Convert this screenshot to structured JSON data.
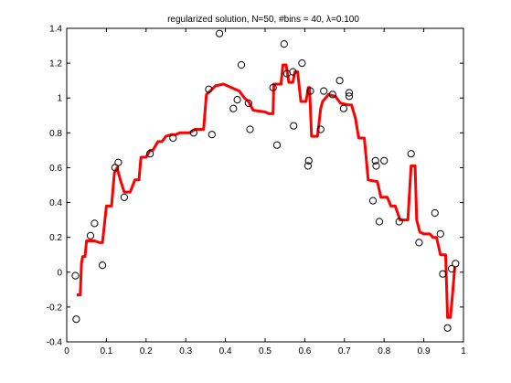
{
  "chart_data": {
    "type": "line",
    "title": "regularized solution, N=50, #bins = 40,    λ=0.100",
    "xlabel": "",
    "ylabel": "",
    "xlim": [
      0,
      1
    ],
    "ylim": [
      -0.4,
      1.4
    ],
    "xticks": [
      0,
      0.1,
      0.2,
      0.3,
      0.4,
      0.5,
      0.6,
      0.7,
      0.8,
      0.9,
      1
    ],
    "xtick_labels": [
      "0",
      "0.1",
      "0.2",
      "0.3",
      "0.4",
      "0.5",
      "0.6",
      "0.7",
      "0.8",
      "0.9",
      "1"
    ],
    "yticks": [
      -0.4,
      -0.2,
      0,
      0.2,
      0.4,
      0.6,
      0.8,
      1,
      1.2,
      1.4
    ],
    "ytick_labels": [
      "-0.4",
      "-0.2",
      "0",
      "0.2",
      "0.4",
      "0.6",
      "0.8",
      "1",
      "1.2",
      "1.4"
    ],
    "grid": false,
    "legend": "none",
    "colors": {
      "solution": "#ff0000",
      "observations": "#000000",
      "axes": "#000000"
    },
    "series": [
      {
        "style": "line",
        "values_xy": [
          [
            0.025,
            -0.13
          ],
          [
            0.034,
            -0.13
          ],
          [
            0.037,
            0.05
          ],
          [
            0.04,
            0.09
          ],
          [
            0.046,
            0.09
          ],
          [
            0.05,
            0.18
          ],
          [
            0.07,
            0.18
          ],
          [
            0.083,
            0.17
          ],
          [
            0.09,
            0.17
          ],
          [
            0.1,
            0.38
          ],
          [
            0.113,
            0.38
          ],
          [
            0.12,
            0.57
          ],
          [
            0.127,
            0.6
          ],
          [
            0.135,
            0.53
          ],
          [
            0.145,
            0.46
          ],
          [
            0.16,
            0.46
          ],
          [
            0.172,
            0.53
          ],
          [
            0.182,
            0.53
          ],
          [
            0.187,
            0.66
          ],
          [
            0.2,
            0.66
          ],
          [
            0.21,
            0.7
          ],
          [
            0.217,
            0.7
          ],
          [
            0.23,
            0.75
          ],
          [
            0.24,
            0.75
          ],
          [
            0.25,
            0.78
          ],
          [
            0.265,
            0.79
          ],
          [
            0.275,
            0.79
          ],
          [
            0.285,
            0.8
          ],
          [
            0.31,
            0.8
          ],
          [
            0.323,
            0.82
          ],
          [
            0.345,
            0.82
          ],
          [
            0.352,
            1.02
          ],
          [
            0.375,
            1.07
          ],
          [
            0.395,
            1.08
          ],
          [
            0.415,
            1.06
          ],
          [
            0.435,
            1.04
          ],
          [
            0.448,
            1.0
          ],
          [
            0.458,
            0.98
          ],
          [
            0.47,
            0.93
          ],
          [
            0.5,
            0.92
          ],
          [
            0.51,
            0.91
          ],
          [
            0.52,
            0.91
          ],
          [
            0.522,
            1.08
          ],
          [
            0.54,
            1.08
          ],
          [
            0.545,
            1.19
          ],
          [
            0.553,
            1.19
          ],
          [
            0.56,
            1.09
          ],
          [
            0.57,
            1.09
          ],
          [
            0.575,
            1.15
          ],
          [
            0.582,
            1.15
          ],
          [
            0.59,
            0.98
          ],
          [
            0.603,
            0.98
          ],
          [
            0.609,
            1.06
          ],
          [
            0.612,
            1.06
          ],
          [
            0.617,
            0.78
          ],
          [
            0.632,
            0.78
          ],
          [
            0.64,
            0.94
          ],
          [
            0.645,
            0.98
          ],
          [
            0.66,
            1.02
          ],
          [
            0.677,
            1.01
          ],
          [
            0.69,
            0.97
          ],
          [
            0.71,
            0.96
          ],
          [
            0.718,
            0.96
          ],
          [
            0.728,
            0.88
          ],
          [
            0.736,
            0.77
          ],
          [
            0.75,
            0.77
          ],
          [
            0.76,
            0.53
          ],
          [
            0.783,
            0.52
          ],
          [
            0.792,
            0.43
          ],
          [
            0.808,
            0.43
          ],
          [
            0.817,
            0.38
          ],
          [
            0.828,
            0.38
          ],
          [
            0.84,
            0.3
          ],
          [
            0.86,
            0.3
          ],
          [
            0.868,
            0.61
          ],
          [
            0.878,
            0.61
          ],
          [
            0.882,
            0.3
          ],
          [
            0.89,
            0.23
          ],
          [
            0.9,
            0.22
          ],
          [
            0.915,
            0.22
          ],
          [
            0.923,
            0.2
          ],
          [
            0.932,
            0.2
          ],
          [
            0.942,
            0.1
          ],
          [
            0.955,
            0.1
          ],
          [
            0.96,
            -0.26
          ],
          [
            0.967,
            -0.26
          ],
          [
            0.972,
            -0.14
          ],
          [
            0.978,
            0.03
          ]
        ]
      },
      {
        "style": "markers",
        "values_xy": [
          [
            0.022,
            -0.02
          ],
          [
            0.024,
            -0.27
          ],
          [
            0.06,
            0.21
          ],
          [
            0.07,
            0.28
          ],
          [
            0.09,
            0.04
          ],
          [
            0.122,
            0.6
          ],
          [
            0.13,
            0.63
          ],
          [
            0.145,
            0.43
          ],
          [
            0.21,
            0.68
          ],
          [
            0.268,
            0.77
          ],
          [
            0.32,
            0.8
          ],
          [
            0.358,
            1.05
          ],
          [
            0.366,
            0.79
          ],
          [
            0.385,
            1.37
          ],
          [
            0.42,
            0.94
          ],
          [
            0.43,
            0.99
          ],
          [
            0.44,
            1.19
          ],
          [
            0.458,
            0.97
          ],
          [
            0.462,
            0.82
          ],
          [
            0.52,
            1.06
          ],
          [
            0.53,
            0.73
          ],
          [
            0.548,
            1.31
          ],
          [
            0.555,
            1.14
          ],
          [
            0.57,
            1.15
          ],
          [
            0.572,
            0.84
          ],
          [
            0.593,
            1.2
          ],
          [
            0.608,
            0.61
          ],
          [
            0.61,
            0.64
          ],
          [
            0.614,
            1.04
          ],
          [
            0.64,
            0.82
          ],
          [
            0.648,
            1.04
          ],
          [
            0.67,
            1.02
          ],
          [
            0.688,
            1.1
          ],
          [
            0.698,
            0.94
          ],
          [
            0.712,
            1.01
          ],
          [
            0.712,
            1.03
          ],
          [
            0.772,
            0.41
          ],
          [
            0.778,
            0.64
          ],
          [
            0.78,
            0.61
          ],
          [
            0.788,
            0.29
          ],
          [
            0.8,
            0.64
          ],
          [
            0.838,
            0.29
          ],
          [
            0.868,
            0.68
          ],
          [
            0.888,
            0.17
          ],
          [
            0.928,
            0.34
          ],
          [
            0.942,
            0.22
          ],
          [
            0.948,
            -0.01
          ],
          [
            0.96,
            -0.32
          ],
          [
            0.97,
            0.02
          ],
          [
            0.98,
            0.05
          ]
        ]
      }
    ]
  }
}
